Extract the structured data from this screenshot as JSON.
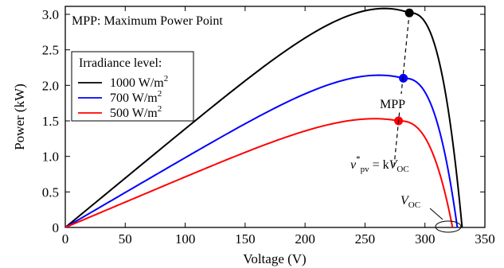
{
  "chart_data": {
    "type": "line",
    "xlabel": "Voltage (V)",
    "ylabel": "Power (kW)",
    "xlim": [
      0,
      350
    ],
    "ylim": [
      0,
      3.0
    ],
    "x_ticks": [
      "0",
      "50",
      "100",
      "150",
      "200",
      "250",
      "300",
      "350"
    ],
    "y_ticks": [
      "0",
      "0.5",
      "1.0",
      "1.5",
      "2.0",
      "2.5",
      "3.0"
    ],
    "grid": false,
    "annotation_top": "MPP: Maximum Power Point",
    "legend": {
      "title": "Irradiance level:",
      "placement": "upper-left",
      "entries": [
        {
          "base": "1000 W/m",
          "sup": "2",
          "color": "#000000"
        },
        {
          "base": "700 W/m",
          "sup": "2",
          "color": "#0000ff"
        },
        {
          "base": "500 W/m",
          "sup": "2",
          "color": "#ff0000"
        }
      ]
    },
    "series": [
      {
        "color": "#000000",
        "mpp": [
          287,
          3.02
        ],
        "voc": 331
      },
      {
        "color": "#0000ff",
        "mpp": [
          282,
          2.1
        ],
        "voc": 327
      },
      {
        "color": "#ff0000",
        "mpp": [
          278,
          1.5
        ],
        "voc": 323
      }
    ],
    "mpp_label": "MPP",
    "formula": {
      "v": "v",
      "star": "*",
      "sub": "pv",
      "eq": " = k",
      "V": "V",
      "OC": "OC"
    },
    "voc_label": {
      "V": "V",
      "OC": "OC"
    }
  }
}
